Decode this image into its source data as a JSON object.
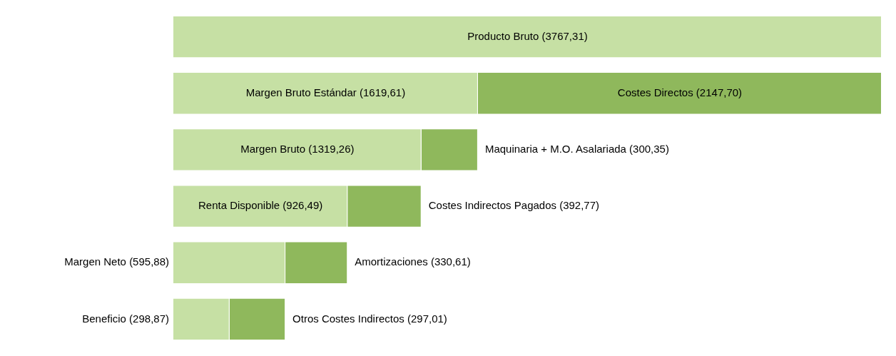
{
  "chart_data": {
    "type": "bar",
    "orientation": "horizontal",
    "stacked": true,
    "tick_labels": false,
    "categories": [
      null,
      null,
      null,
      null,
      null,
      null
    ],
    "series": [
      {
        "color": "#c6e0a4",
        "values": [
          3767.31,
          1619.61,
          1319.26,
          926.49,
          595.88,
          298.87
        ],
        "value_labels": [
          "Producto Bruto (3767,31)",
          "Margen Bruto Estándar (1619,61)",
          "Margen Bruto (1319,26)",
          "Renta Disponible (926,49)",
          "Margen Neto (595,88)",
          "Beneficio (298,87)"
        ]
      },
      {
        "color": "#8fb85c",
        "values": [
          null,
          2147.7,
          300.35,
          392.77,
          330.61,
          297.01
        ],
        "value_labels": [
          null,
          "Costes Directos (2147,70)",
          "Maquinaria + M.O. Asalariada (300,35)",
          "Costes Indirectos Pagados (392,77)",
          "Amortizaciones (330,61)",
          "Otros Costes Indirectos (297,01)"
        ]
      }
    ]
  }
}
